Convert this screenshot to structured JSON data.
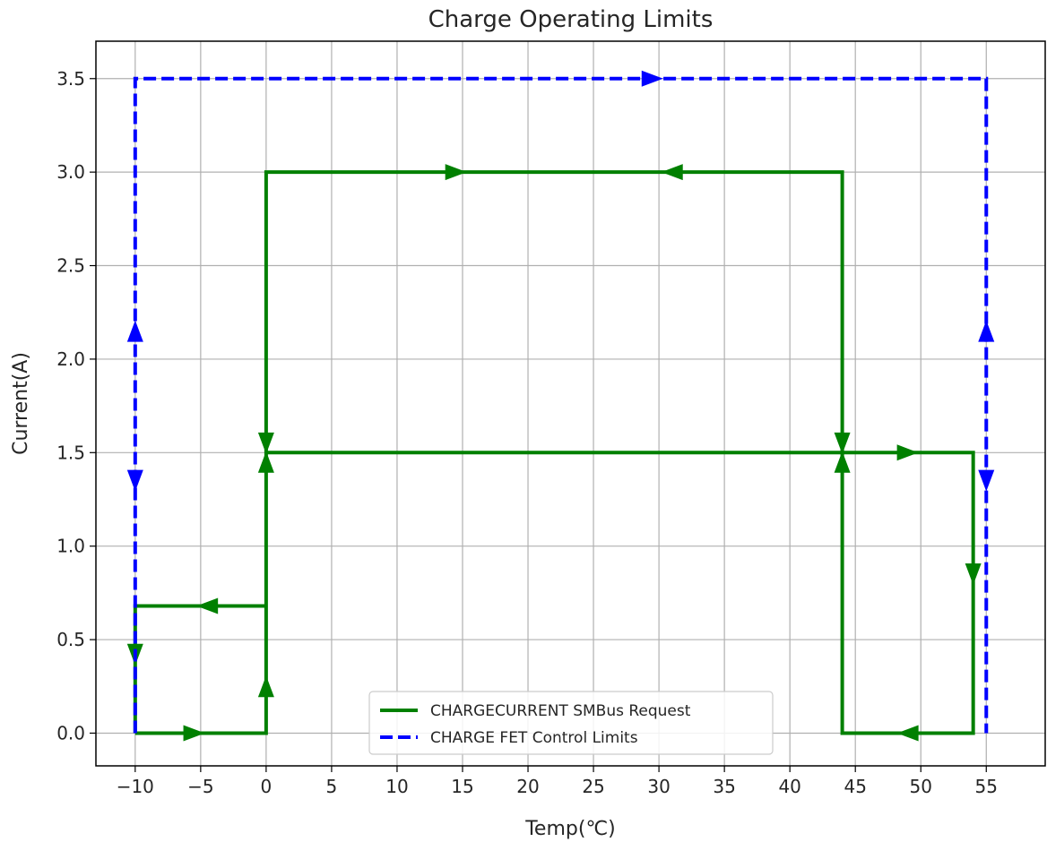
{
  "chart_data": {
    "type": "line",
    "title": "Charge Operating Limits",
    "xlabel": "Temp(℃)",
    "ylabel": "Current(A)",
    "xlim": [
      -13,
      59.5
    ],
    "ylim": [
      -0.175,
      3.7
    ],
    "xticks": [
      -10,
      -5,
      0,
      5,
      10,
      15,
      20,
      25,
      30,
      35,
      40,
      45,
      50,
      55
    ],
    "xtick_labels": [
      "−10",
      "−5",
      "0",
      "5",
      "10",
      "15",
      "20",
      "25",
      "30",
      "35",
      "40",
      "45",
      "50",
      "55"
    ],
    "yticks": [
      0.0,
      0.5,
      1.0,
      1.5,
      2.0,
      2.5,
      3.0,
      3.5
    ],
    "ytick_labels": [
      "0.0",
      "0.5",
      "1.0",
      "1.5",
      "2.0",
      "2.5",
      "3.0",
      "3.5"
    ],
    "grid": true,
    "legend_position": "bottom-center",
    "series": [
      {
        "name": "CHARGECURRENT SMBus Request",
        "color": "#008000",
        "style": "solid",
        "x": [
          -10,
          0,
          0,
          0,
          44,
          44,
          54,
          54,
          44,
          44,
          0,
          0,
          -10,
          -10
        ],
        "y": [
          0,
          0,
          1.5,
          3.0,
          3.0,
          1.5,
          1.5,
          0,
          0,
          1.5,
          1.5,
          0.68,
          0.68,
          0
        ],
        "arrows": [
          {
            "x": -5.5,
            "y": 0,
            "dir": "right"
          },
          {
            "x": 0,
            "y": 0.25,
            "dir": "up"
          },
          {
            "x": 0,
            "y": 1.45,
            "dir": "up"
          },
          {
            "x": 14.5,
            "y": 3.0,
            "dir": "right"
          },
          {
            "x": 31,
            "y": 3.0,
            "dir": "left"
          },
          {
            "x": 44,
            "y": 1.55,
            "dir": "down"
          },
          {
            "x": 44,
            "y": 1.45,
            "dir": "up"
          },
          {
            "x": 49,
            "y": 1.5,
            "dir": "right"
          },
          {
            "x": 54,
            "y": 0.85,
            "dir": "down"
          },
          {
            "x": 49,
            "y": 0,
            "dir": "left"
          },
          {
            "x": 0,
            "y": 1.55,
            "dir": "down"
          },
          {
            "x": -4.5,
            "y": 0.68,
            "dir": "left"
          },
          {
            "x": -10,
            "y": 0.42,
            "dir": "down"
          }
        ]
      },
      {
        "name": "CHARGE FET Control Limits",
        "color": "#0000ff",
        "style": "dashed",
        "x": [
          -10,
          -10,
          55,
          55
        ],
        "y": [
          0,
          3.5,
          3.5,
          0
        ],
        "arrows": [
          {
            "x": -10,
            "y": 2.15,
            "dir": "up"
          },
          {
            "x": -10,
            "y": 1.35,
            "dir": "down"
          },
          {
            "x": 29.5,
            "y": 3.5,
            "dir": "right"
          },
          {
            "x": 55,
            "y": 2.15,
            "dir": "up"
          },
          {
            "x": 55,
            "y": 1.35,
            "dir": "down"
          }
        ]
      }
    ]
  }
}
